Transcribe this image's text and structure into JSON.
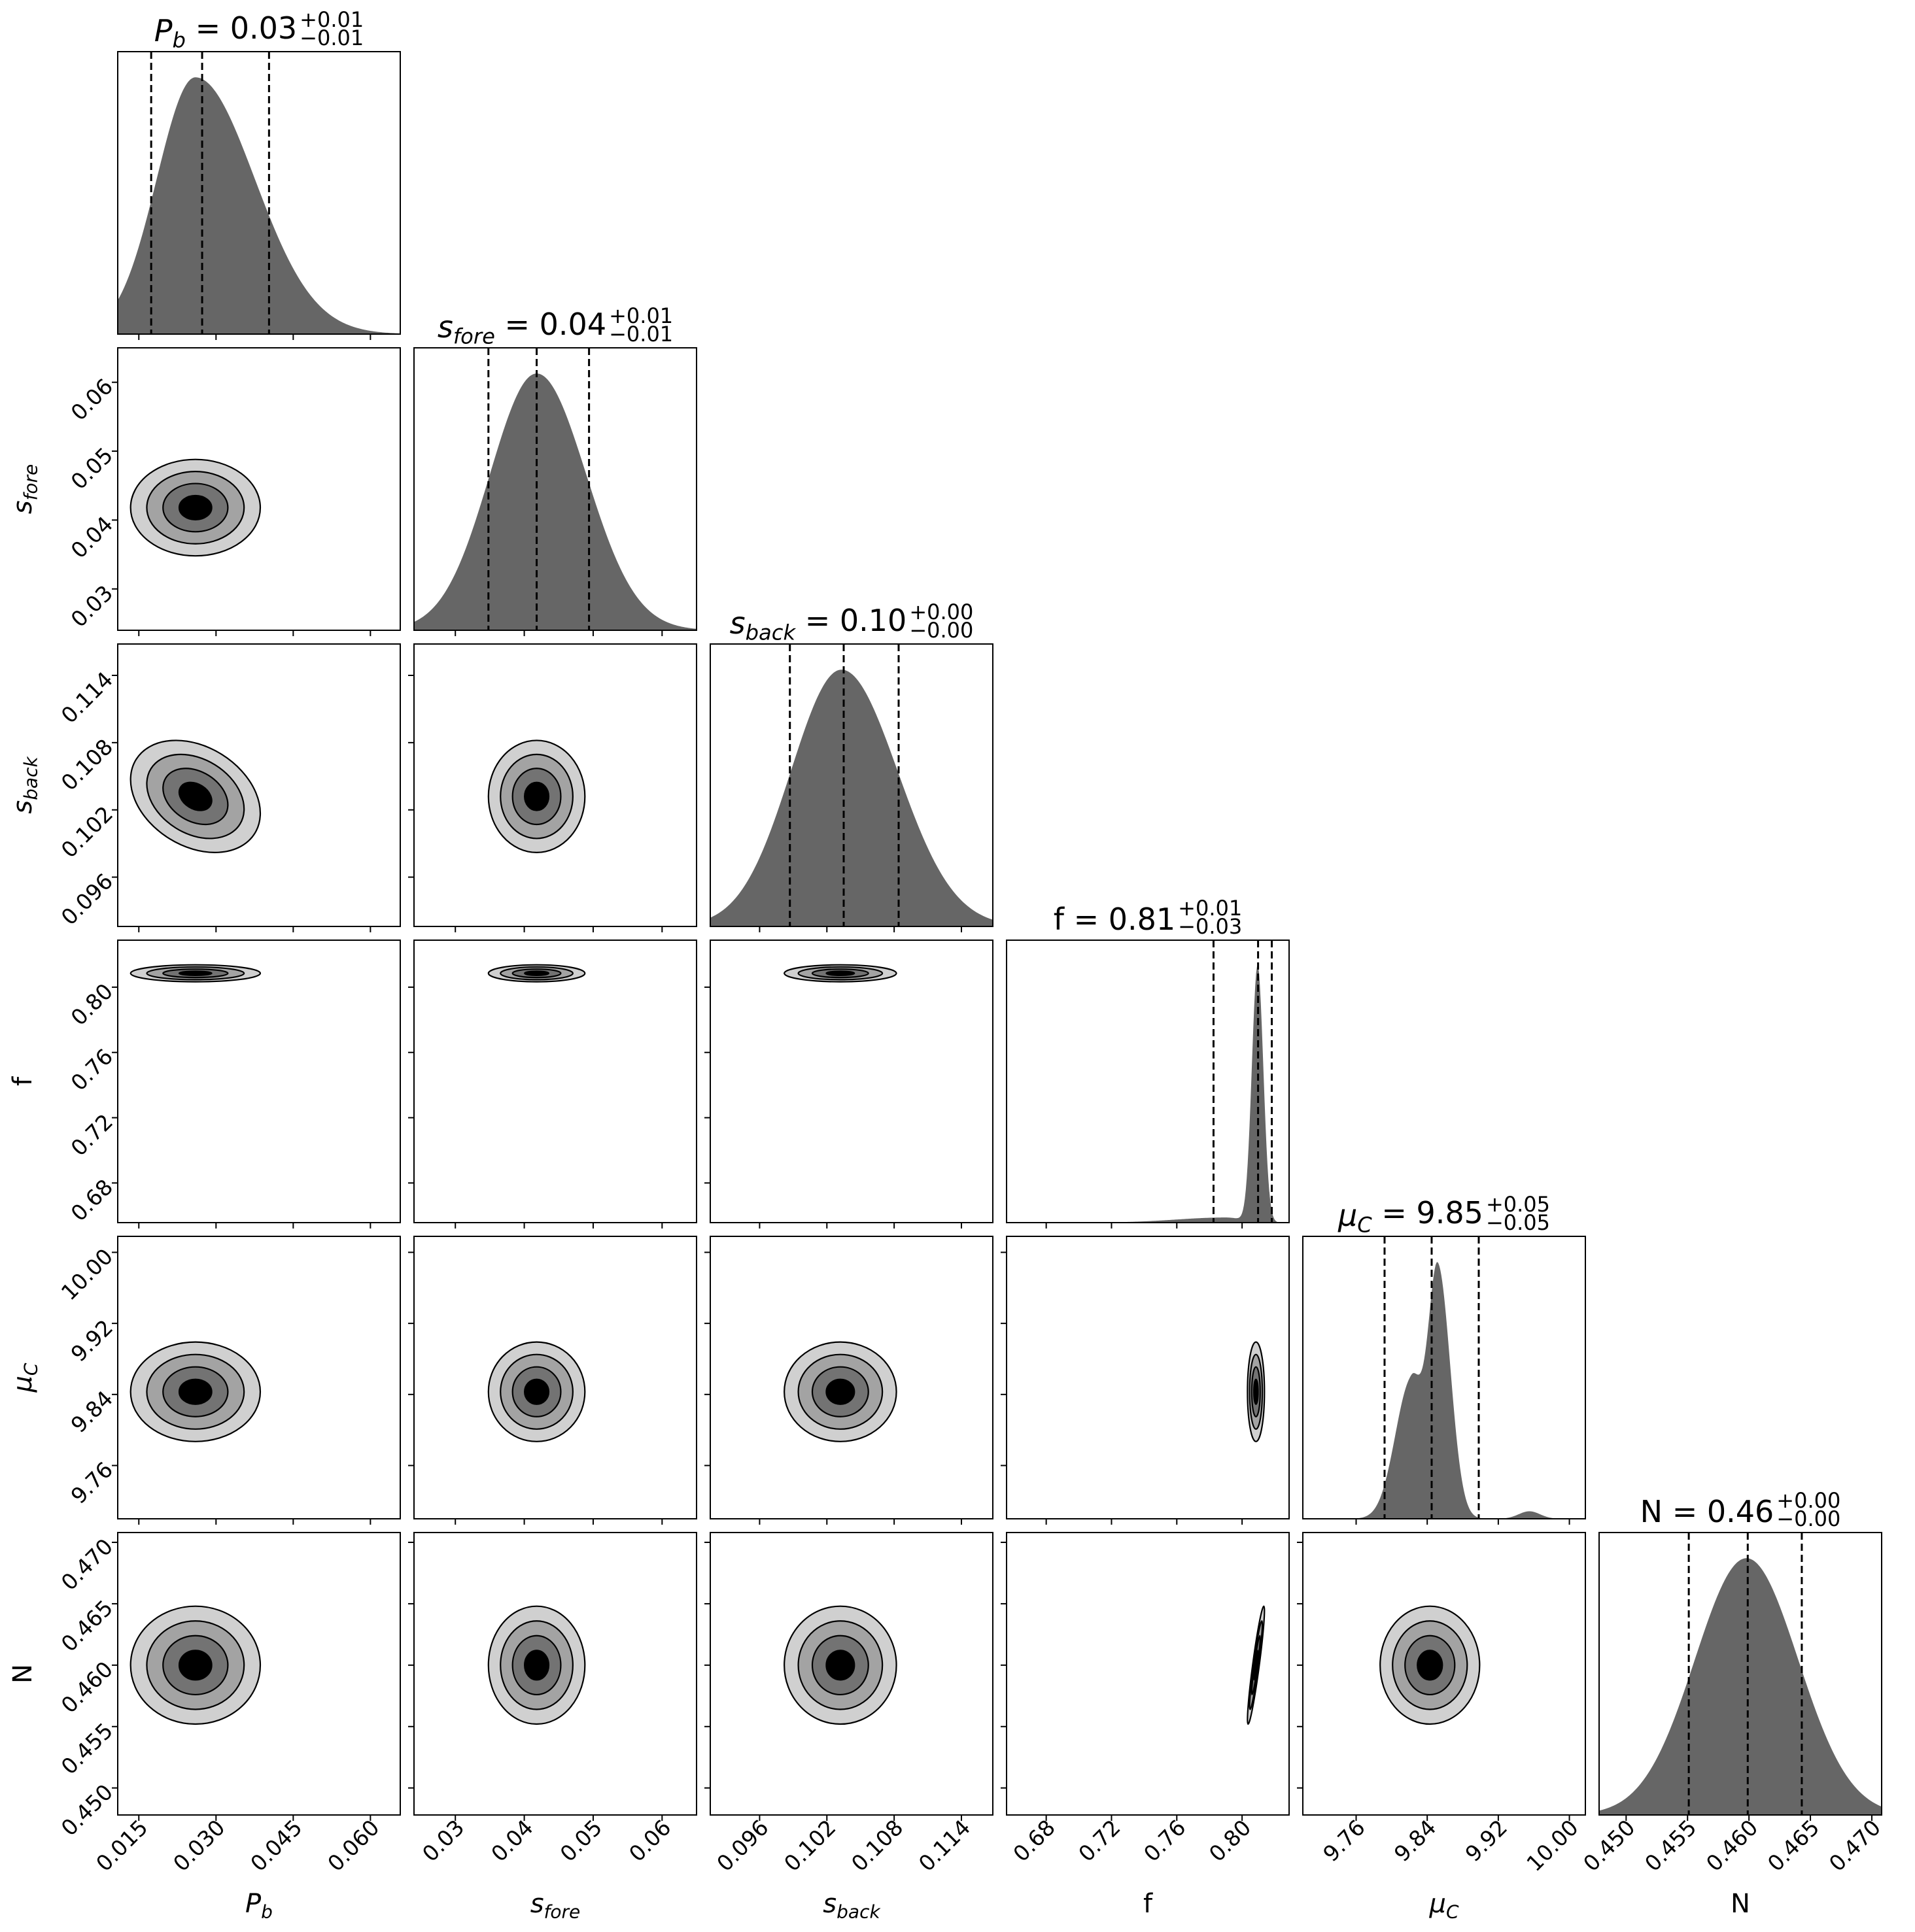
{
  "chart_data": {
    "type": "corner",
    "title": "",
    "grid": false,
    "colors": {
      "histogram_fill": "#666666",
      "contour_levels": [
        "#d0d0d0",
        "#a3a3a3",
        "#737373",
        "#000000"
      ],
      "quantile_line": "#000000"
    },
    "contour_sigma_levels": [
      2.0,
      1.5,
      1.0,
      0.5
    ],
    "parameters": [
      {
        "label": "P",
        "label_sub": "b",
        "italic": true,
        "range": [
          0.0109,
          0.0658
        ],
        "ticks": [
          0.015,
          0.03,
          0.045,
          0.06
        ],
        "tick_labels": [
          "0.015",
          "0.030",
          "0.045",
          "0.060"
        ],
        "q16": 0.0174,
        "median": 0.0273,
        "q84": 0.0403,
        "title_value": "= 0.03",
        "title_plus": "+0.01",
        "title_minus": "−0.01",
        "marginal": [
          {
            "mu": 0.026,
            "sigma_left": 0.0075,
            "sigma_right": 0.0115,
            "weight": 1
          }
        ],
        "center2d": 0.026,
        "sigma2d": 0.0063
      },
      {
        "label": "s",
        "label_sub": "fore",
        "italic": true,
        "range": [
          0.024,
          0.065
        ],
        "ticks": [
          0.03,
          0.04,
          0.05,
          0.06
        ],
        "tick_labels": [
          "0.03",
          "0.04",
          "0.05",
          "0.06"
        ],
        "q16": 0.0348,
        "median": 0.0418,
        "q84": 0.0494,
        "title_value": "= 0.04",
        "title_plus": "+0.01",
        "title_minus": "−0.01",
        "marginal": [
          {
            "mu": 0.0418,
            "sigma_left": 0.0068,
            "sigma_right": 0.0072,
            "weight": 1
          }
        ],
        "center2d": 0.0418,
        "sigma2d": 0.0035
      },
      {
        "label": "s",
        "label_sub": "back",
        "italic": true,
        "range": [
          0.0916,
          0.1168
        ],
        "ticks": [
          0.096,
          0.102,
          0.108,
          0.114
        ],
        "tick_labels": [
          "0.096",
          "0.102",
          "0.108",
          "0.114"
        ],
        "q16": 0.0987,
        "median": 0.1035,
        "q84": 0.1084,
        "title_value": "= 0.10",
        "title_plus": "+0.00",
        "title_minus": "−0.00",
        "marginal": [
          {
            "mu": 0.1033,
            "sigma_left": 0.0045,
            "sigma_right": 0.005,
            "weight": 1
          }
        ],
        "center2d": 0.1032,
        "sigma2d": 0.0025
      },
      {
        "label": "f",
        "label_sub": "",
        "italic": false,
        "range": [
          0.6557,
          0.8288
        ],
        "ticks": [
          0.68,
          0.72,
          0.76,
          0.8
        ],
        "tick_labels": [
          "0.68",
          "0.72",
          "0.76",
          "0.80"
        ],
        "q16": 0.7825,
        "median": 0.8098,
        "q84": 0.8182,
        "title_value": "f = 0.81",
        "title_plus": "+0.01",
        "title_minus": "−0.03",
        "marginal": [
          {
            "mu": 0.8095,
            "sigma_left": 0.0035,
            "sigma_right": 0.0035,
            "weight": 1
          },
          {
            "mu": 0.79,
            "sigma_left": 0.03,
            "sigma_right": 0.01,
            "weight": 0.02
          }
        ],
        "center2d": 0.8085,
        "sigma2d": 0.0026
      },
      {
        "label": "μ",
        "label_sub": "C",
        "italic": true,
        "range": [
          9.7,
          10.018
        ],
        "ticks": [
          9.76,
          9.84,
          9.92,
          10.0
        ],
        "tick_labels": [
          "9.76",
          "9.84",
          "9.92",
          "10.00"
        ],
        "q16": 9.792,
        "median": 9.845,
        "q84": 9.898,
        "title_value": "= 9.85",
        "title_plus": "+0.05",
        "title_minus": "−0.05",
        "marginal": [
          {
            "mu": 9.852,
            "sigma_left": 0.011,
            "sigma_right": 0.014,
            "weight": 1
          },
          {
            "mu": 9.822,
            "sigma_left": 0.018,
            "sigma_right": 0.012,
            "weight": 0.55
          },
          {
            "mu": 9.955,
            "sigma_left": 0.012,
            "sigma_right": 0.012,
            "weight": 0.03
          }
        ],
        "center2d": 9.843,
        "sigma2d": 0.028
      },
      {
        "label": "N",
        "label_sub": "",
        "italic": false,
        "range": [
          0.4478,
          0.4708
        ],
        "ticks": [
          0.45,
          0.455,
          0.46,
          0.465,
          0.47
        ],
        "tick_labels": [
          "0.450",
          "0.455",
          "0.460",
          "0.465",
          "0.470"
        ],
        "q16": 0.4551,
        "median": 0.4599,
        "q84": 0.4643,
        "title_value": "N = 0.46",
        "title_plus": "+0.00",
        "title_minus": "−0.00",
        "marginal": [
          {
            "mu": 0.4598,
            "sigma_left": 0.0042,
            "sigma_right": 0.0042,
            "weight": 1
          }
        ],
        "center2d": 0.46,
        "sigma2d": 0.0024
      }
    ],
    "correlations": [
      {
        "x": 0,
        "y": 2,
        "rho": -0.3
      },
      {
        "x": 3,
        "y": 5,
        "rho": 0.92
      }
    ]
  }
}
